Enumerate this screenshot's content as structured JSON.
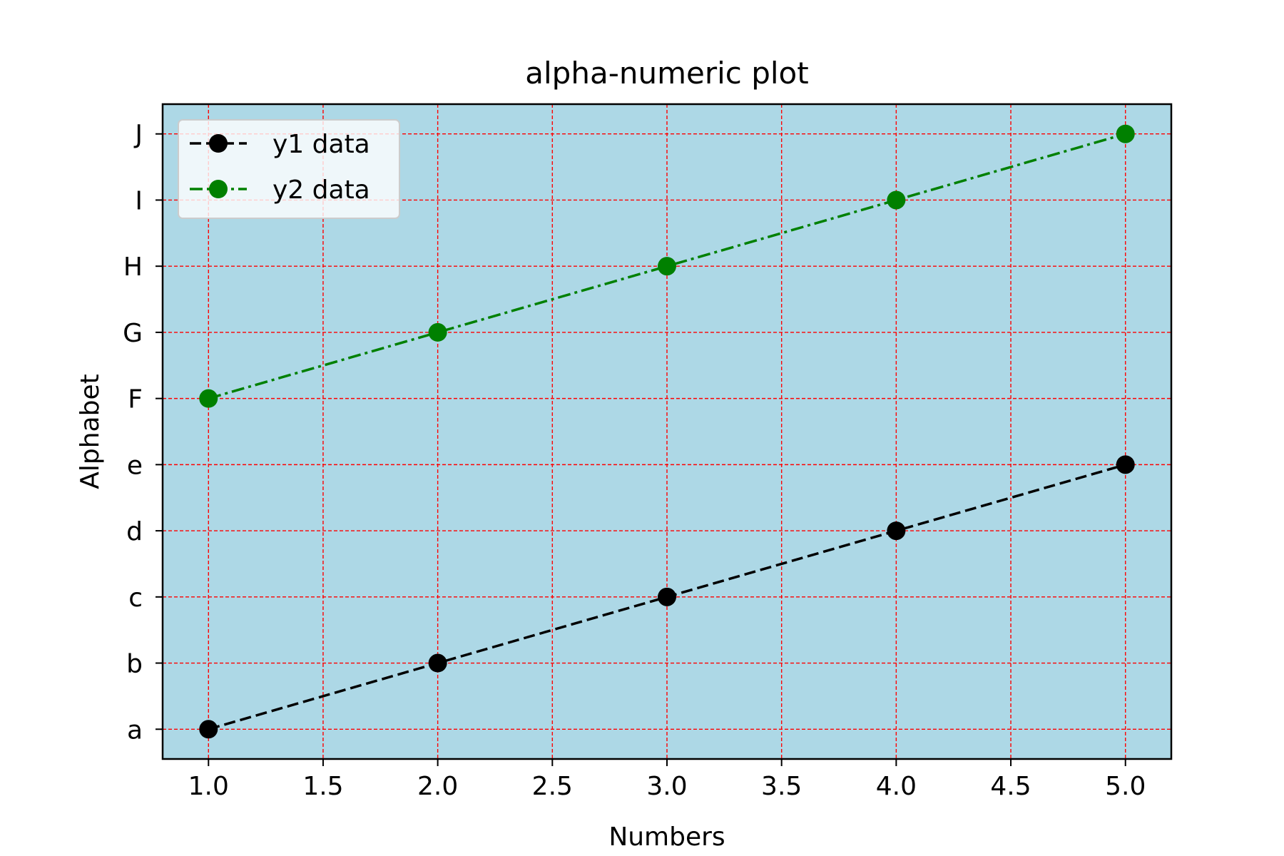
{
  "chart_data": {
    "type": "line",
    "title": "alpha-numeric plot",
    "xlabel": "Numbers",
    "ylabel": "Alphabet",
    "x_ticks": [
      "1.0",
      "1.5",
      "2.0",
      "2.5",
      "3.0",
      "3.5",
      "4.0",
      "4.5",
      "5.0"
    ],
    "y_categories": [
      "a",
      "b",
      "c",
      "d",
      "e",
      "F",
      "G",
      "H",
      "I",
      "J"
    ],
    "xlim": [
      0.8,
      5.2
    ],
    "x": [
      1,
      2,
      3,
      4,
      5
    ],
    "series": [
      {
        "name": "y1 data",
        "values": [
          "a",
          "b",
          "c",
          "d",
          "e"
        ],
        "color": "#000000",
        "linestyle": "dashed",
        "marker": "circle"
      },
      {
        "name": "y2 data",
        "values": [
          "F",
          "G",
          "H",
          "I",
          "J"
        ],
        "color": "#008000",
        "linestyle": "dash-dot",
        "marker": "circle"
      }
    ],
    "grid": true,
    "grid_color": "#ff0000",
    "plot_background": "#add8e6",
    "legend_position": "upper-left"
  }
}
